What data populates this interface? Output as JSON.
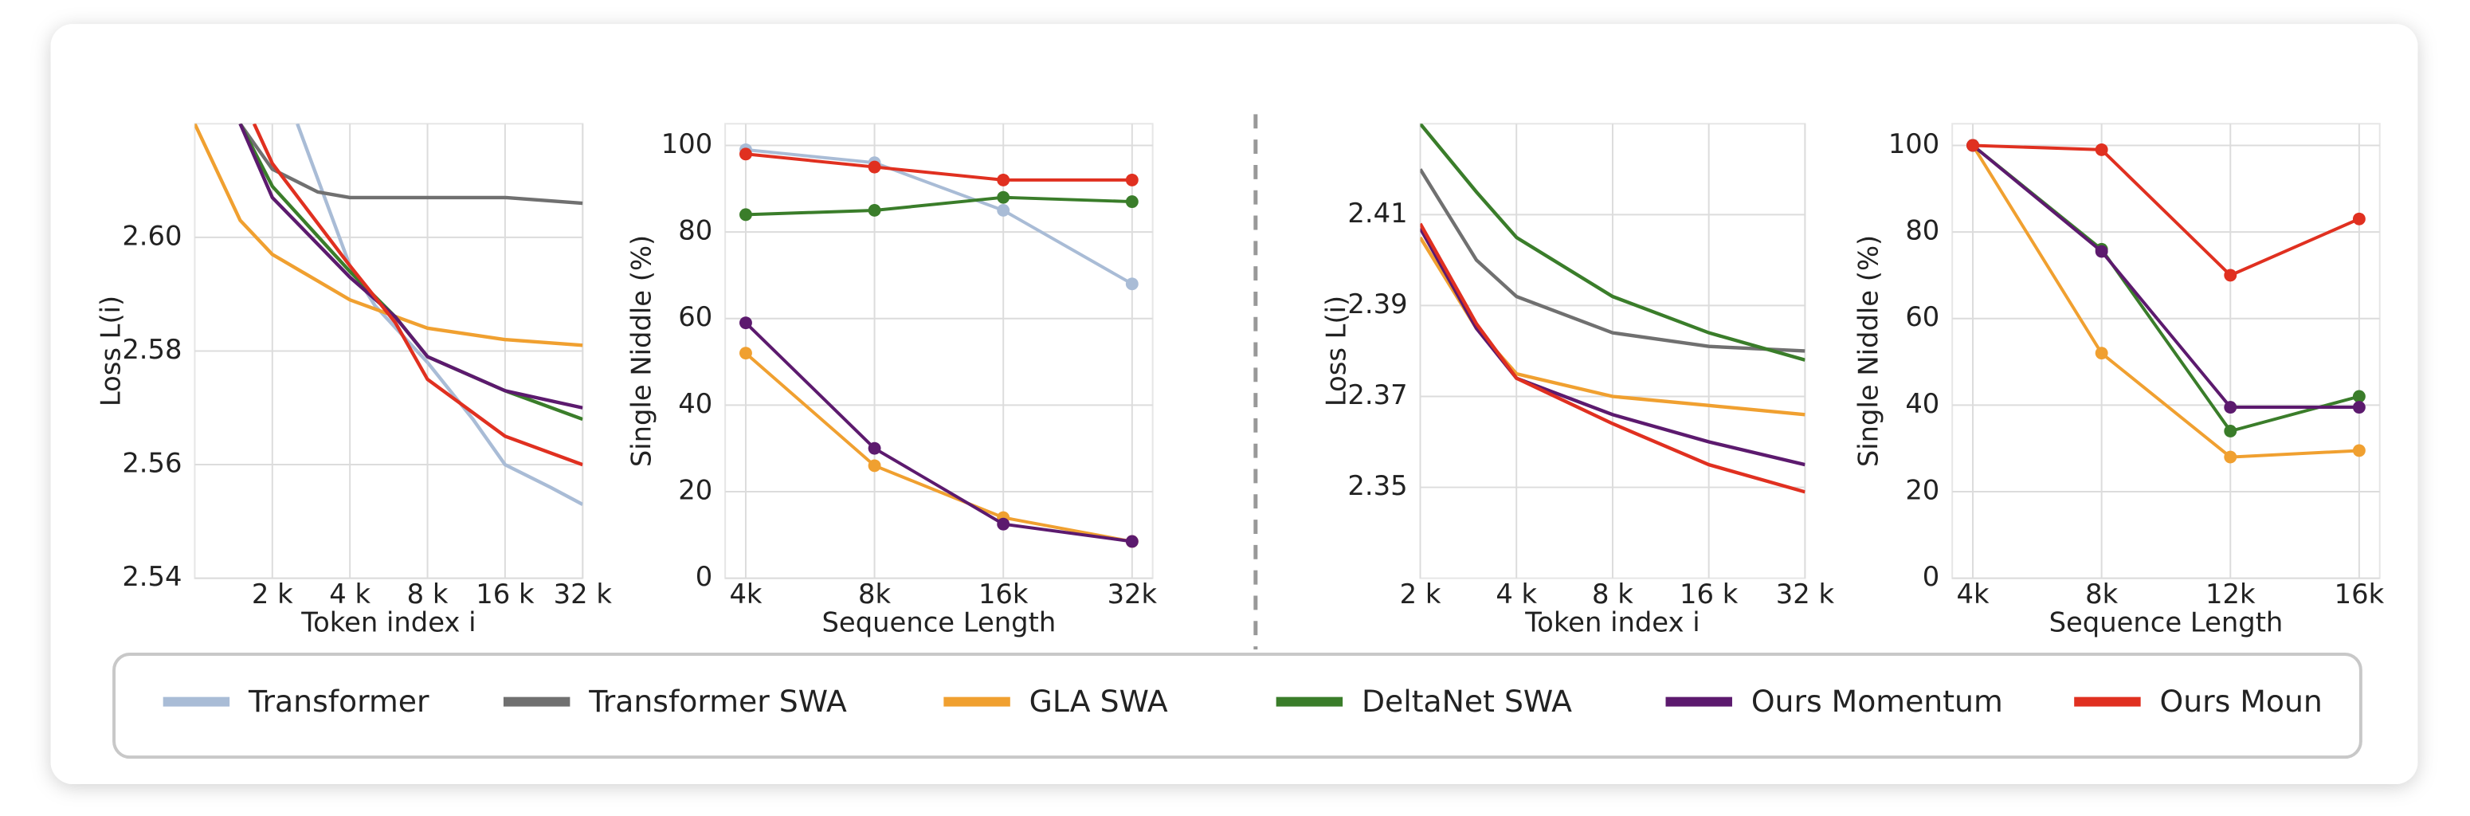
{
  "chart_data": [
    {
      "type": "line",
      "xscale": "log",
      "ylabel": "Loss L(i)",
      "xlabel": "Token index i",
      "xlim": [
        1000,
        32000
      ],
      "ylim": [
        2.54,
        2.62
      ],
      "xticks": [
        {
          "value": 2000,
          "label": "2 k"
        },
        {
          "value": 4000,
          "label": "4 k"
        },
        {
          "value": 8000,
          "label": "8 k"
        },
        {
          "value": 16000,
          "label": "16 k"
        },
        {
          "value": 32000,
          "label": "32 k"
        }
      ],
      "yticks": [
        2.54,
        2.56,
        2.58,
        {
          "value": 2.6,
          "label": "2.60"
        }
      ],
      "grid": true,
      "series": [
        {
          "color": "#a9bcd6",
          "x": [
            2500,
            4000,
            5000,
            8000,
            12000,
            16000,
            24000,
            32000
          ],
          "values": [
            2.62,
            2.595,
            2.588,
            2.578,
            2.568,
            2.56,
            2.556,
            2.553
          ]
        },
        {
          "color": "#707070",
          "x": [
            1500,
            2000,
            3000,
            4000,
            8000,
            16000,
            32000
          ],
          "values": [
            2.62,
            2.612,
            2.608,
            2.607,
            2.607,
            2.607,
            2.606
          ]
        },
        {
          "color": "#f0a030",
          "x": [
            1000,
            1500,
            2000,
            4000,
            8000,
            16000,
            32000
          ],
          "values": [
            2.62,
            2.603,
            2.597,
            2.589,
            2.584,
            2.582,
            2.581
          ]
        },
        {
          "color": "#3a7d2a",
          "x": [
            1500,
            2000,
            4000,
            6000,
            8000,
            16000,
            32000
          ],
          "values": [
            2.62,
            2.609,
            2.594,
            2.586,
            2.579,
            2.573,
            2.568
          ]
        },
        {
          "color": "#5c1a6e",
          "x": [
            1500,
            2000,
            4000,
            6000,
            8000,
            16000,
            32000
          ],
          "values": [
            2.62,
            2.607,
            2.593,
            2.586,
            2.579,
            2.573,
            2.57
          ]
        },
        {
          "color": "#e03020",
          "x": [
            1700,
            2000,
            4000,
            6000,
            8000,
            16000,
            32000
          ],
          "values": [
            2.62,
            2.613,
            2.595,
            2.585,
            2.575,
            2.565,
            2.56
          ]
        }
      ]
    },
    {
      "type": "categorical-line",
      "ylabel": "Single Niddle (%)",
      "xlabel": "Sequence Length",
      "categories": [
        "4k",
        "8k",
        "16k",
        "32k"
      ],
      "ylim": [
        0,
        105
      ],
      "yticks": [
        0,
        20,
        40,
        60,
        80,
        100
      ],
      "grid": true,
      "series": [
        {
          "color": "#a9bcd6",
          "values": [
            99,
            96,
            85,
            68
          ]
        },
        {
          "color": "#f0a030",
          "values": [
            52,
            26,
            14,
            8.5
          ]
        },
        {
          "color": "#3a7d2a",
          "values": [
            84,
            85,
            88,
            87
          ]
        },
        {
          "color": "#5c1a6e",
          "values": [
            59,
            30,
            12.5,
            8.5
          ]
        },
        {
          "color": "#e03020",
          "values": [
            98,
            95,
            92,
            92
          ]
        }
      ]
    },
    {
      "type": "line",
      "xscale": "log",
      "ylabel": "Loss L(i)",
      "xlabel": "Token index i",
      "xlim": [
        2000,
        32000
      ],
      "ylim": [
        2.33,
        2.43
      ],
      "xticks": [
        {
          "value": 2000,
          "label": "2 k"
        },
        {
          "value": 4000,
          "label": "4 k"
        },
        {
          "value": 8000,
          "label": "8 k"
        },
        {
          "value": 16000,
          "label": "16 k"
        },
        {
          "value": 32000,
          "label": "32 k"
        }
      ],
      "yticks": [
        2.35,
        2.37,
        2.39,
        2.41
      ],
      "grid": true,
      "series": [
        {
          "color": "#707070",
          "x": [
            2000,
            3000,
            4000,
            8000,
            16000,
            32000
          ],
          "values": [
            2.42,
            2.4,
            2.392,
            2.384,
            2.381,
            2.38
          ]
        },
        {
          "color": "#f0a030",
          "x": [
            2000,
            3000,
            4000,
            8000,
            16000,
            32000
          ],
          "values": [
            2.405,
            2.385,
            2.375,
            2.37,
            2.368,
            2.366
          ]
        },
        {
          "color": "#3a7d2a",
          "x": [
            2000,
            3000,
            4000,
            8000,
            16000,
            32000
          ],
          "values": [
            2.43,
            2.415,
            2.405,
            2.392,
            2.384,
            2.378
          ]
        },
        {
          "color": "#5c1a6e",
          "x": [
            2000,
            3000,
            4000,
            8000,
            16000,
            32000
          ],
          "values": [
            2.407,
            2.385,
            2.374,
            2.366,
            2.36,
            2.355
          ]
        },
        {
          "color": "#e03020",
          "x": [
            2000,
            3000,
            4000,
            8000,
            16000,
            32000
          ],
          "values": [
            2.408,
            2.386,
            2.374,
            2.364,
            2.355,
            2.349
          ]
        }
      ]
    },
    {
      "type": "categorical-line",
      "ylabel": "Single Niddle (%)",
      "xlabel": "Sequence Length",
      "categories": [
        "4k",
        "8k",
        "12k",
        "16k"
      ],
      "ylim": [
        0,
        105
      ],
      "yticks": [
        0,
        20,
        40,
        60,
        80,
        100
      ],
      "grid": true,
      "series": [
        {
          "color": "#f0a030",
          "values": [
            100,
            52,
            28,
            29.5
          ]
        },
        {
          "color": "#3a7d2a",
          "values": [
            100,
            76,
            34,
            42
          ]
        },
        {
          "color": "#5c1a6e",
          "values": [
            100,
            75.5,
            39.5,
            39.5
          ]
        },
        {
          "color": "#e03020",
          "values": [
            100,
            99,
            70,
            83
          ]
        }
      ]
    }
  ],
  "legend": [
    {
      "name": "Transformer",
      "color": "#a9bcd6"
    },
    {
      "name": "Transformer SWA",
      "color": "#707070"
    },
    {
      "name": "GLA SWA",
      "color": "#f0a030"
    },
    {
      "name": "DeltaNet SWA",
      "color": "#3a7d2a"
    },
    {
      "name": "Ours Momentum",
      "color": "#5c1a6e"
    },
    {
      "name": "Ours Moun",
      "color": "#e03020"
    }
  ]
}
